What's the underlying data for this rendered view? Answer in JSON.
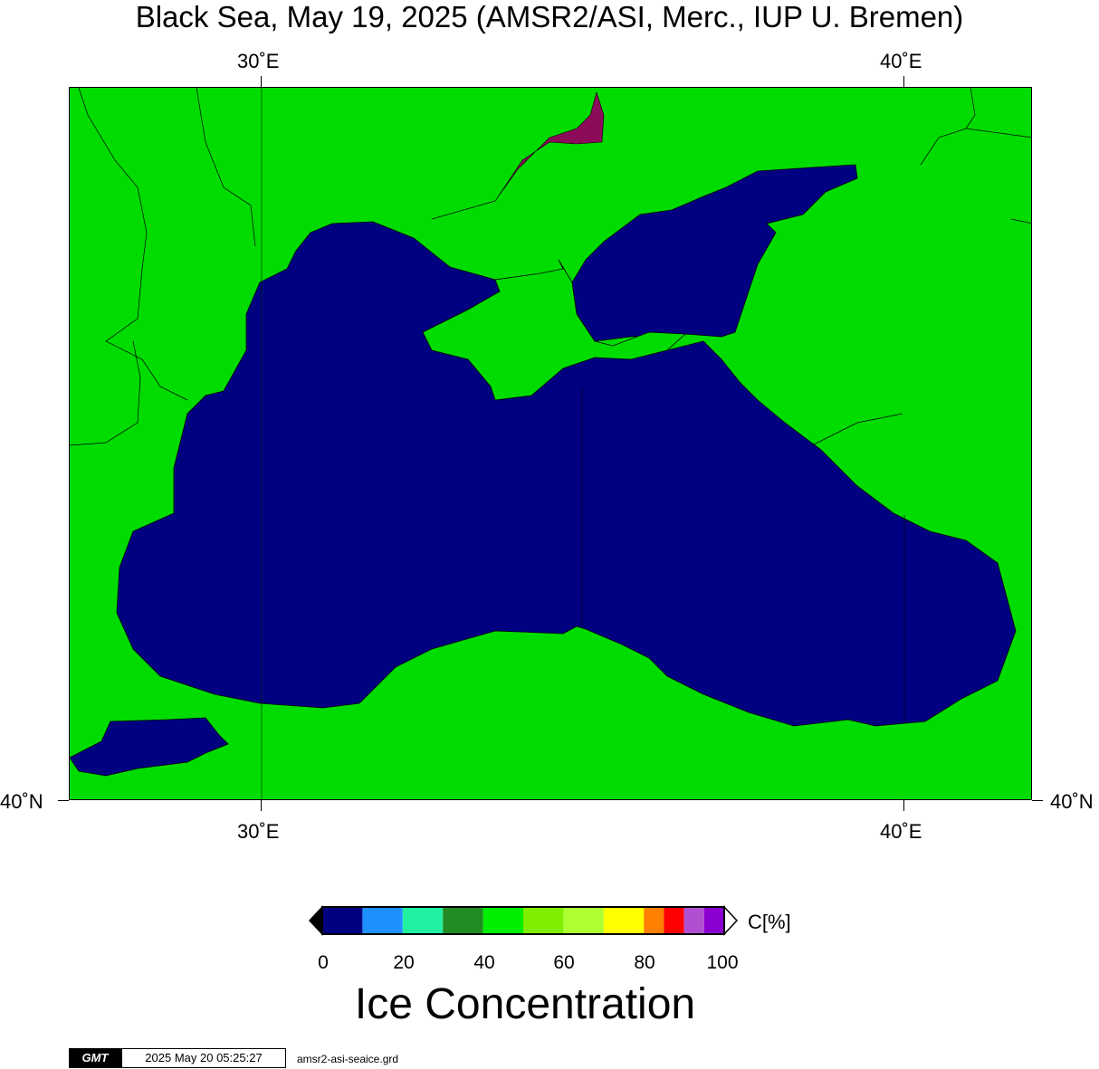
{
  "title": "Black Sea, May 19, 2025 (AMSR2/ASI, Merc., IUP U. Bremen)",
  "axes": {
    "top_labels": [
      "30˚E",
      "40˚E"
    ],
    "bottom_labels": [
      "30˚E",
      "40˚E"
    ],
    "left_label": "40˚N",
    "right_label": "40˚N"
  },
  "colors": {
    "land": "#00dc00",
    "water": "#000080",
    "border": "#000000",
    "no_data": "#808080",
    "high_ice_purple": "#8b0a5a"
  },
  "colorbar": {
    "unit": "C[%]",
    "title": "Ice Concentration",
    "tick_labels": [
      "0",
      "20",
      "40",
      "60",
      "80",
      "100"
    ],
    "bins": [
      {
        "from": 0,
        "to": 10,
        "color": "#000080"
      },
      {
        "from": 10,
        "to": 20,
        "color": "#1e90ff"
      },
      {
        "from": 20,
        "to": 30,
        "color": "#20f0a0"
      },
      {
        "from": 30,
        "to": 40,
        "color": "#228b22"
      },
      {
        "from": 40,
        "to": 50,
        "color": "#00ee00"
      },
      {
        "from": 50,
        "to": 60,
        "color": "#7fee00"
      },
      {
        "from": 60,
        "to": 70,
        "color": "#adff2f"
      },
      {
        "from": 70,
        "to": 80,
        "color": "#ffff00"
      },
      {
        "from": 80,
        "to": 85,
        "color": "#ff7f00"
      },
      {
        "from": 85,
        "to": 90,
        "color": "#ff0000"
      },
      {
        "from": 90,
        "to": 95,
        "color": "#b050d0"
      },
      {
        "from": 95,
        "to": 100,
        "color": "#8b00d0"
      }
    ],
    "low_color": "#000000",
    "high_color": "#ffffff"
  },
  "footer": {
    "logo": "GMT",
    "timestamp": "2025 May 20 05:25:27",
    "filename": "amsr2-asi-seaice.grd"
  }
}
